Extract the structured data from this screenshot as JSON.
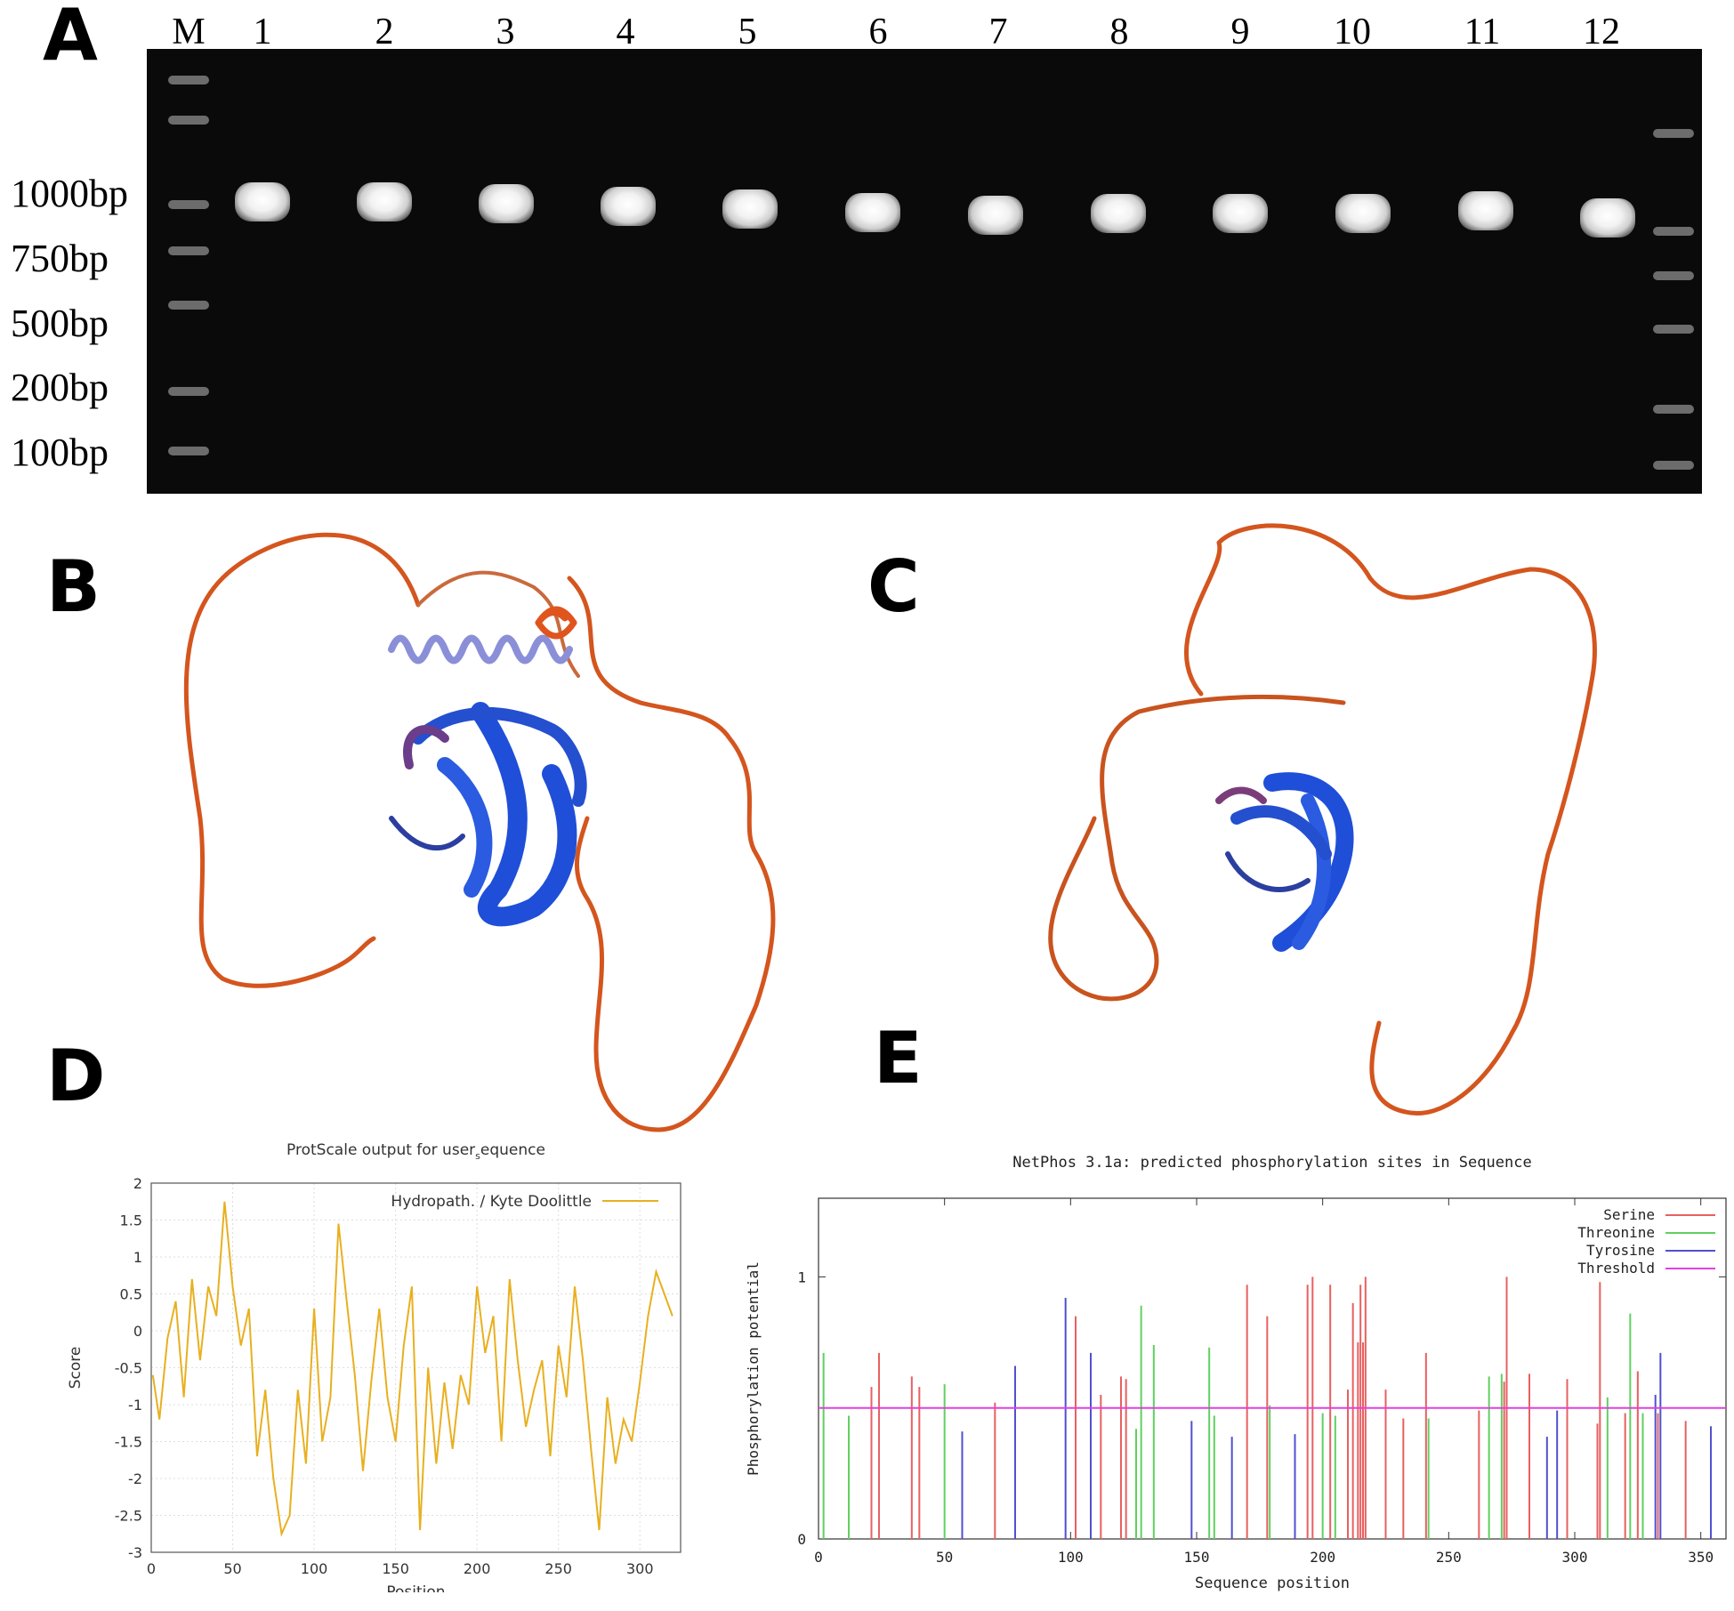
{
  "panels": {
    "a": "A",
    "b": "B",
    "c": "C",
    "d": "D",
    "e": "E"
  },
  "gel": {
    "lanes": [
      "M",
      "1",
      "2",
      "3",
      "4",
      "5",
      "6",
      "7",
      "8",
      "9",
      "10",
      "11",
      "12"
    ],
    "markers": [
      "1000bp",
      "750bp",
      "500bp",
      "200bp",
      "100bp"
    ]
  },
  "colors": {
    "helix_blue": "#1f4fd8",
    "coil_orange": "#d4551e",
    "hydropathy": "#e8b020",
    "serine": "#e86060",
    "threonine": "#60d060",
    "tyrosine": "#5050d0",
    "threshold": "#e040e0"
  },
  "chart_data": [
    {
      "type": "line",
      "title": "ProtScale output for user",
      "title_sub": "s",
      "title_rest": "equence",
      "xlabel": "Position",
      "ylabel": "Score",
      "xlim": [
        0,
        325
      ],
      "ylim": [
        -3,
        2
      ],
      "xticks": [
        "0",
        "50",
        "100",
        "150",
        "200",
        "250",
        "300"
      ],
      "yticks": [
        "2",
        "1.5",
        "1",
        "0.5",
        "0",
        "-0.5",
        "-1",
        "-1.5",
        "-2",
        "-2.5",
        "-3"
      ],
      "grid": true,
      "legend_placement": "top-right",
      "series": [
        {
          "name": "Hydropath. / Kyte  Doolittle",
          "x": [
            1,
            5,
            10,
            15,
            20,
            25,
            30,
            35,
            40,
            45,
            50,
            55,
            60,
            65,
            70,
            75,
            80,
            85,
            90,
            95,
            100,
            105,
            110,
            115,
            120,
            125,
            130,
            135,
            140,
            145,
            150,
            155,
            160,
            165,
            170,
            175,
            180,
            185,
            190,
            195,
            200,
            205,
            210,
            215,
            220,
            225,
            230,
            235,
            240,
            245,
            250,
            255,
            260,
            265,
            270,
            275,
            280,
            285,
            290,
            295,
            300,
            305,
            310,
            315,
            320
          ],
          "values": [
            -0.6,
            -1.2,
            -0.1,
            0.4,
            -0.9,
            0.7,
            -0.4,
            0.6,
            0.2,
            1.75,
            0.6,
            -0.2,
            0.3,
            -1.7,
            -0.8,
            -2.0,
            -2.75,
            -2.5,
            -0.8,
            -1.8,
            0.3,
            -1.5,
            -0.9,
            1.45,
            0.4,
            -0.6,
            -1.9,
            -0.7,
            0.3,
            -0.9,
            -1.5,
            -0.2,
            0.6,
            -2.7,
            -0.5,
            -1.8,
            -0.7,
            -1.6,
            -0.6,
            -1.0,
            0.6,
            -0.3,
            0.2,
            -1.5,
            0.7,
            -0.4,
            -1.3,
            -0.8,
            -0.4,
            -1.7,
            -0.2,
            -0.9,
            0.6,
            -0.4,
            -1.6,
            -2.7,
            -0.9,
            -1.8,
            -1.2,
            -1.5,
            -0.7,
            0.2,
            0.8,
            0.5,
            0.2
          ]
        }
      ]
    },
    {
      "type": "bar",
      "title": "NetPhos 3.1a: predicted phosphorylation sites in Sequence",
      "xlabel": "Sequence position",
      "ylabel": "Phosphorylation potential",
      "xlim": [
        0,
        360
      ],
      "ylim": [
        0,
        1.3
      ],
      "xticks": [
        "0",
        "50",
        "100",
        "150",
        "200",
        "250",
        "300",
        "350"
      ],
      "yticks": [
        "0",
        "1"
      ],
      "legend_placement": "top-right",
      "threshold": 0.5,
      "series": [
        {
          "name": "Serine",
          "x": [
            21,
            24,
            37,
            40,
            70,
            102,
            112,
            120,
            122,
            170,
            178,
            194,
            196,
            203,
            210,
            212,
            214,
            215,
            216,
            217,
            225,
            232,
            241,
            262,
            272,
            273,
            282,
            297,
            309,
            310,
            320,
            325,
            333,
            344
          ],
          "values": [
            0.58,
            0.71,
            0.62,
            0.58,
            0.52,
            0.85,
            0.55,
            0.62,
            0.61,
            0.97,
            0.85,
            0.97,
            1.0,
            0.97,
            0.57,
            0.9,
            0.75,
            0.97,
            0.75,
            1.0,
            0.57,
            0.46,
            0.71,
            0.49,
            0.6,
            1.0,
            0.63,
            0.61,
            0.44,
            0.98,
            0.48,
            0.64,
            0.48,
            0.45
          ]
        },
        {
          "name": "Threonine",
          "x": [
            2,
            12,
            50,
            126,
            128,
            133,
            155,
            157,
            179,
            200,
            205,
            242,
            266,
            271,
            313,
            322,
            327
          ],
          "values": [
            0.71,
            0.47,
            0.59,
            0.42,
            0.89,
            0.74,
            0.73,
            0.47,
            0.51,
            0.48,
            0.47,
            0.46,
            0.62,
            0.63,
            0.54,
            0.86,
            0.48
          ]
        },
        {
          "name": "Tyrosine",
          "x": [
            57,
            78,
            98,
            108,
            148,
            164,
            189,
            289,
            293,
            332,
            334,
            354
          ],
          "values": [
            0.41,
            0.66,
            0.92,
            0.71,
            0.45,
            0.39,
            0.4,
            0.39,
            0.49,
            0.55,
            0.71,
            0.43
          ]
        },
        {
          "name": "Threshold",
          "values": [
            0.5
          ]
        }
      ]
    }
  ]
}
